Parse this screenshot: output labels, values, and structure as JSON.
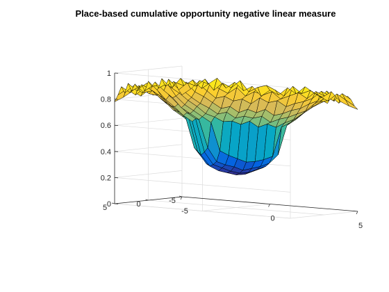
{
  "chart_data": {
    "type": "surface",
    "title": "Place-based cumulative opportunity negative linear measure",
    "xlabel": "",
    "ylabel": "",
    "zlabel": "",
    "xlim": [
      -5,
      5
    ],
    "ylim": [
      -5,
      5
    ],
    "zlim": [
      0,
      1
    ],
    "x_ticks": [
      -5,
      0,
      5
    ],
    "y_ticks": [
      -5,
      0,
      5
    ],
    "z_ticks": [
      0,
      0.2,
      0.4,
      0.6,
      0.8,
      1
    ],
    "x_tick_labels": [
      "-5",
      "0",
      "5"
    ],
    "y_tick_labels": [
      "-5",
      "0",
      "5"
    ],
    "z_tick_labels": [
      "0",
      "0.2",
      "0.4",
      "0.6",
      "0.8",
      "1"
    ],
    "grid": true,
    "colormap": "parula",
    "colormap_stops": [
      "#352a87",
      "#0363e1",
      "#1485d4",
      "#06a7c6",
      "#38b99e",
      "#92bf73",
      "#d9ba56",
      "#fcce2e",
      "#f9fb0e"
    ],
    "x": [
      -5,
      -4.5,
      -4,
      -3.5,
      -3,
      -2.5,
      -2,
      -1.5,
      -1,
      -0.5,
      0,
      0.5,
      1,
      1.5,
      2,
      2.5,
      3,
      3.5,
      4,
      4.5,
      5
    ],
    "y": [
      -5,
      -4.5,
      -4,
      -3.5,
      -3,
      -2.5,
      -2,
      -1.5,
      -1,
      -0.5,
      0,
      0.5,
      1,
      1.5,
      2,
      2.5,
      3,
      3.5,
      4,
      4.5,
      5
    ],
    "z": [
      [
        0.78,
        0.83,
        0.9,
        0.88,
        0.93,
        0.86,
        0.91,
        0.85,
        0.89,
        0.82,
        0.87,
        0.84,
        0.9,
        0.86,
        0.92,
        0.88,
        0.85,
        0.9,
        0.83,
        0.8,
        0.78
      ],
      [
        0.82,
        0.88,
        0.86,
        0.92,
        0.84,
        0.9,
        0.87,
        0.93,
        0.85,
        0.89,
        0.91,
        0.88,
        0.84,
        0.92,
        0.87,
        0.9,
        0.86,
        0.83,
        0.89,
        0.85,
        0.81
      ],
      [
        0.88,
        0.86,
        0.91,
        0.85,
        0.9,
        0.86,
        0.83,
        0.88,
        0.82,
        0.86,
        0.84,
        0.87,
        0.82,
        0.85,
        0.88,
        0.84,
        0.9,
        0.87,
        0.84,
        0.9,
        0.86
      ],
      [
        0.84,
        0.92,
        0.86,
        0.89,
        0.84,
        0.79,
        0.81,
        0.78,
        0.8,
        0.77,
        0.82,
        0.79,
        0.81,
        0.77,
        0.8,
        0.82,
        0.85,
        0.91,
        0.88,
        0.83,
        0.89
      ],
      [
        0.91,
        0.85,
        0.9,
        0.83,
        0.8,
        0.76,
        0.72,
        0.74,
        0.7,
        0.73,
        0.71,
        0.74,
        0.7,
        0.72,
        0.75,
        0.77,
        0.81,
        0.84,
        0.92,
        0.87,
        0.84
      ],
      [
        0.86,
        0.9,
        0.84,
        0.79,
        0.75,
        0.72,
        0.68,
        0.7,
        0.66,
        0.68,
        0.67,
        0.69,
        0.65,
        0.68,
        0.7,
        0.73,
        0.76,
        0.82,
        0.86,
        0.9,
        0.88
      ],
      [
        0.92,
        0.86,
        0.82,
        0.77,
        0.73,
        0.68,
        0.66,
        0.63,
        0.64,
        0.62,
        0.65,
        0.61,
        0.64,
        0.62,
        0.66,
        0.69,
        0.74,
        0.79,
        0.84,
        0.86,
        0.91
      ],
      [
        0.85,
        0.89,
        0.8,
        0.74,
        0.7,
        0.66,
        0.62,
        0.41,
        0.38,
        0.36,
        0.34,
        0.35,
        0.37,
        0.4,
        0.63,
        0.67,
        0.72,
        0.78,
        0.83,
        0.9,
        0.86
      ],
      [
        0.9,
        0.84,
        0.79,
        0.72,
        0.68,
        0.64,
        0.43,
        0.33,
        0.31,
        0.3,
        0.28,
        0.3,
        0.32,
        0.35,
        0.42,
        0.65,
        0.7,
        0.76,
        0.81,
        0.85,
        0.89
      ],
      [
        0.87,
        0.88,
        0.81,
        0.75,
        0.69,
        0.65,
        0.4,
        0.31,
        0.29,
        0.27,
        0.26,
        0.27,
        0.3,
        0.33,
        0.4,
        0.64,
        0.71,
        0.77,
        0.84,
        0.88,
        0.85
      ],
      [
        0.91,
        0.85,
        0.78,
        0.73,
        0.67,
        0.63,
        0.38,
        0.3,
        0.27,
        0.26,
        0.25,
        0.26,
        0.29,
        0.32,
        0.39,
        0.62,
        0.69,
        0.75,
        0.8,
        0.86,
        0.9
      ],
      [
        0.84,
        0.89,
        0.8,
        0.74,
        0.7,
        0.66,
        0.41,
        0.32,
        0.3,
        0.28,
        0.26,
        0.28,
        0.31,
        0.34,
        0.41,
        0.65,
        0.72,
        0.78,
        0.83,
        0.89,
        0.87
      ],
      [
        0.89,
        0.86,
        0.82,
        0.76,
        0.71,
        0.67,
        0.44,
        0.36,
        0.33,
        0.31,
        0.3,
        0.31,
        0.33,
        0.37,
        0.43,
        0.66,
        0.73,
        0.79,
        0.85,
        0.84,
        0.91
      ],
      [
        0.86,
        0.91,
        0.83,
        0.78,
        0.72,
        0.68,
        0.63,
        0.42,
        0.39,
        0.37,
        0.36,
        0.37,
        0.4,
        0.44,
        0.64,
        0.68,
        0.74,
        0.8,
        0.82,
        0.9,
        0.86
      ],
      [
        0.9,
        0.84,
        0.86,
        0.8,
        0.75,
        0.7,
        0.67,
        0.64,
        0.62,
        0.6,
        0.61,
        0.62,
        0.63,
        0.65,
        0.68,
        0.71,
        0.76,
        0.83,
        0.87,
        0.84,
        0.89
      ],
      [
        0.85,
        0.89,
        0.84,
        0.83,
        0.78,
        0.74,
        0.7,
        0.68,
        0.66,
        0.65,
        0.64,
        0.66,
        0.67,
        0.69,
        0.72,
        0.75,
        0.8,
        0.86,
        0.83,
        0.9,
        0.85
      ],
      [
        0.91,
        0.86,
        0.9,
        0.85,
        0.82,
        0.78,
        0.75,
        0.73,
        0.71,
        0.72,
        0.7,
        0.73,
        0.72,
        0.74,
        0.77,
        0.8,
        0.85,
        0.82,
        0.89,
        0.86,
        0.92
      ],
      [
        0.84,
        0.9,
        0.85,
        0.91,
        0.86,
        0.83,
        0.8,
        0.78,
        0.81,
        0.77,
        0.8,
        0.78,
        0.82,
        0.79,
        0.83,
        0.86,
        0.88,
        0.91,
        0.85,
        0.9,
        0.86
      ],
      [
        0.89,
        0.85,
        0.91,
        0.86,
        0.92,
        0.87,
        0.84,
        0.88,
        0.83,
        0.86,
        0.84,
        0.87,
        0.85,
        0.88,
        0.86,
        0.9,
        0.84,
        0.87,
        0.92,
        0.86,
        0.88
      ],
      [
        0.83,
        0.88,
        0.84,
        0.9,
        0.85,
        0.91,
        0.88,
        0.84,
        0.9,
        0.87,
        0.91,
        0.86,
        0.89,
        0.85,
        0.91,
        0.86,
        0.9,
        0.85,
        0.88,
        0.84,
        0.82
      ],
      [
        0.78,
        0.82,
        0.87,
        0.84,
        0.9,
        0.86,
        0.92,
        0.87,
        0.85,
        0.91,
        0.86,
        0.89,
        0.84,
        0.9,
        0.86,
        0.92,
        0.85,
        0.89,
        0.83,
        0.81,
        0.78
      ]
    ]
  }
}
